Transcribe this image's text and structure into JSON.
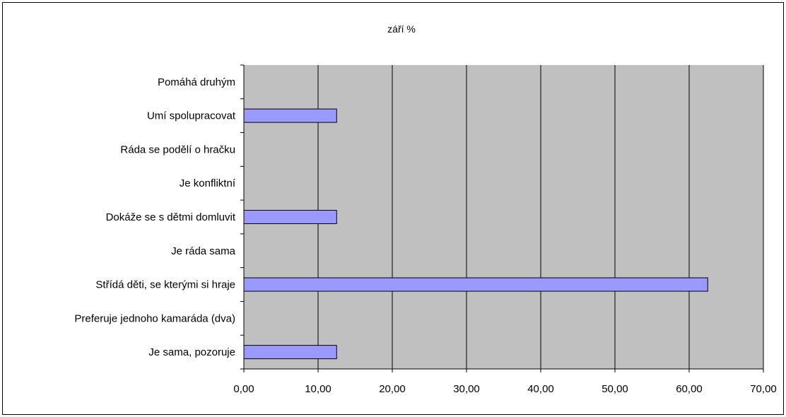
{
  "chart_data": {
    "type": "bar",
    "orientation": "horizontal",
    "title": "září %",
    "categories": [
      "Pomáhá druhým",
      "Umí spolupracovat",
      "Ráda se podělí o hračku",
      "Je konfliktní",
      "Dokáže se s dětmi domluvit",
      "Je ráda sama",
      "Střídá děti, se kterými si hraje",
      "Preferuje jednoho kamaráda (dva)",
      "Je sama, pozoruje"
    ],
    "values": [
      0,
      12.5,
      0,
      0,
      12.5,
      0,
      62.5,
      0,
      12.5
    ],
    "xlim": [
      0,
      70
    ],
    "xticks": [
      "0,00",
      "10,00",
      "20,00",
      "30,00",
      "40,00",
      "50,00",
      "60,00",
      "70,00"
    ],
    "grid": true,
    "legend": "none",
    "colors": {
      "bar_fill": "#9999ff",
      "bar_stroke": "#000000",
      "plot_background": "#c0c0c0",
      "gridline": "#000000"
    }
  }
}
